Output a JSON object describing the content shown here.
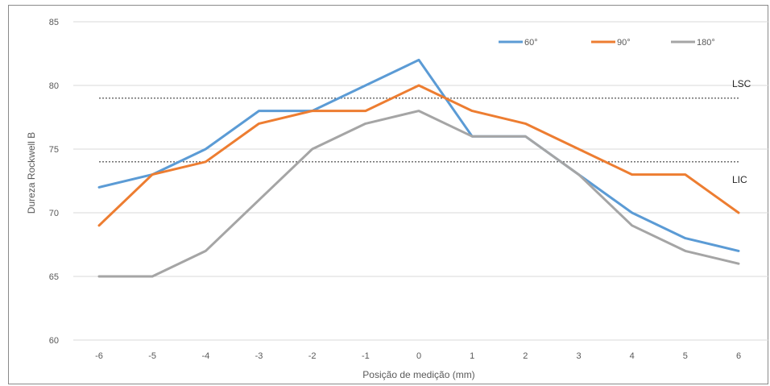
{
  "chart_data": {
    "type": "line",
    "x": [
      -6,
      -5,
      -4,
      -3,
      -2,
      -1,
      0,
      1,
      2,
      3,
      4,
      5,
      6
    ],
    "xlabel": "Posição de medição (mm)",
    "ylabel": "Dureza Rockwell B",
    "ylim": [
      60,
      85
    ],
    "yticks": [
      60,
      65,
      70,
      75,
      80,
      85
    ],
    "grid": "horizontal",
    "legend_position": "top-right",
    "series": [
      {
        "name": "60°",
        "color": "#5b9bd5",
        "values": [
          72,
          73,
          75,
          78,
          78,
          80,
          82,
          76,
          76,
          73,
          70,
          68,
          67
        ]
      },
      {
        "name": "90°",
        "color": "#ed7d31",
        "values": [
          69,
          73,
          74,
          77,
          78,
          78,
          80,
          78,
          77,
          75,
          73,
          73,
          70
        ]
      },
      {
        "name": "180°",
        "color": "#a5a5a5",
        "values": [
          65,
          65,
          67,
          71,
          75,
          77,
          78,
          76,
          76,
          73,
          69,
          67,
          66
        ]
      }
    ],
    "reference_lines": [
      {
        "label": "LSC",
        "value": 79
      },
      {
        "label": "LIC",
        "value": 74
      }
    ]
  }
}
